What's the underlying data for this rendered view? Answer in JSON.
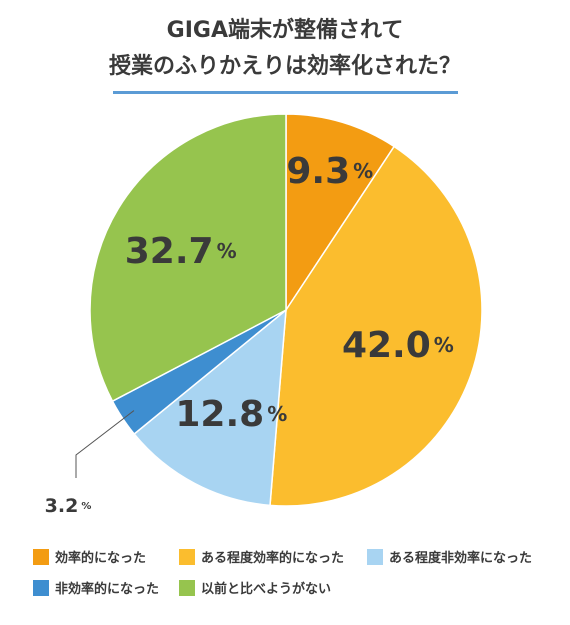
{
  "title_line1": "GIGA端末が整備されて",
  "title_line2": "授業のふりかえりは効率化された？",
  "chart_data": {
    "type": "pie",
    "title": "GIGA端末が整備されて 授業のふりかえりは効率化された？",
    "slices": [
      {
        "label": "効率的になった",
        "value": 9.3,
        "display": "9.3",
        "color": "#f39c12"
      },
      {
        "label": "ある程度効率的になった",
        "value": 42.0,
        "display": "42.0",
        "color": "#fbbd2e"
      },
      {
        "label": "ある程度非効率になった",
        "value": 12.8,
        "display": "12.8",
        "color": "#a8d4f2"
      },
      {
        "label": "非効率的になった",
        "value": 3.2,
        "display": "3.2",
        "color": "#3e8ed0"
      },
      {
        "label": "以前と比べようがない",
        "value": 32.7,
        "display": "32.7",
        "color": "#96c44e"
      }
    ],
    "unit": "%",
    "legend_position": "bottom"
  }
}
